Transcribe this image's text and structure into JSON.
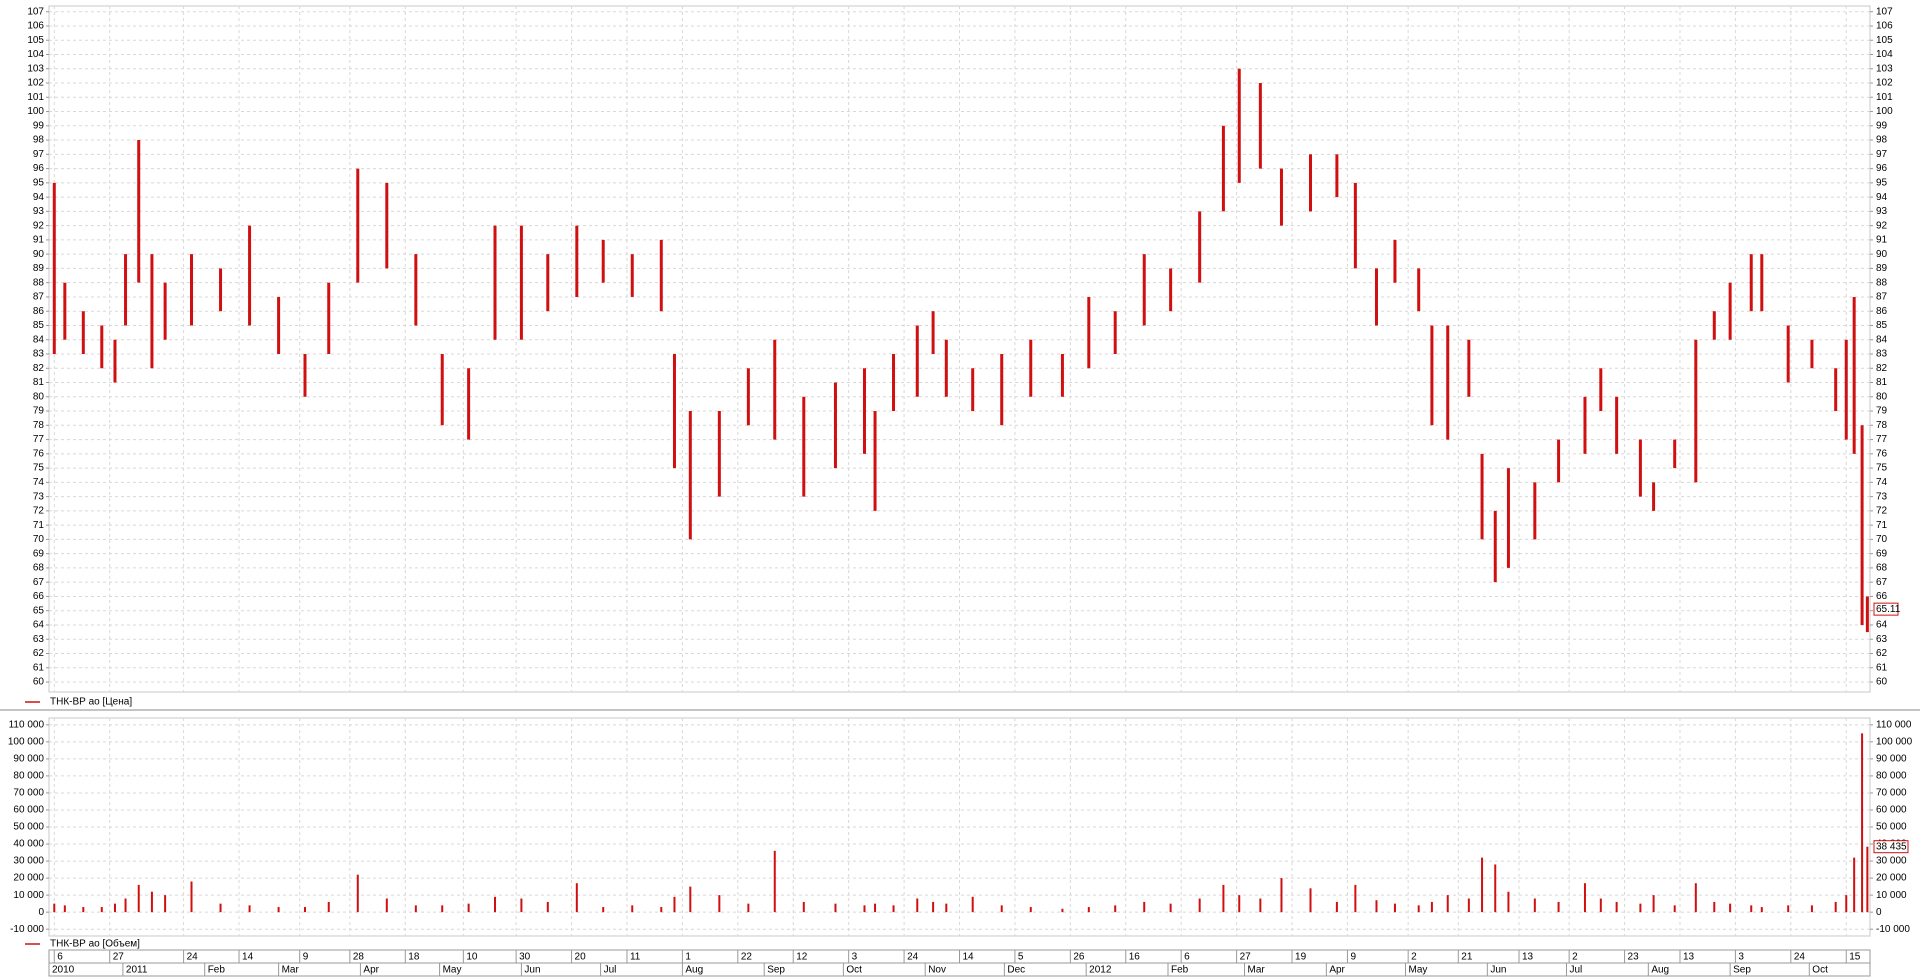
{
  "chart_data": [
    {
      "type": "hilo",
      "legend": "ТНК-ВР ао [Цена]",
      "color": "#d01010",
      "x": [
        "2010-12-06",
        "2010-12-10",
        "2010-12-17",
        "2010-12-24",
        "2010-12-29",
        "2011-01-02",
        "2011-01-07",
        "2011-01-12",
        "2011-01-17",
        "2011-01-27",
        "2011-02-07",
        "2011-02-18",
        "2011-03-01",
        "2011-03-11",
        "2011-03-20",
        "2011-03-31",
        "2011-04-11",
        "2011-04-22",
        "2011-05-02",
        "2011-05-12",
        "2011-05-22",
        "2011-06-01",
        "2011-06-11",
        "2011-06-22",
        "2011-07-02",
        "2011-07-13",
        "2011-07-24",
        "2011-07-29",
        "2011-08-04",
        "2011-08-15",
        "2011-08-26",
        "2011-09-05",
        "2011-09-16",
        "2011-09-28",
        "2011-10-09",
        "2011-10-13",
        "2011-10-20",
        "2011-10-29",
        "2011-11-04",
        "2011-11-09",
        "2011-11-19",
        "2011-11-30",
        "2011-12-11",
        "2011-12-23",
        "2012-01-02",
        "2012-01-12",
        "2012-01-23",
        "2012-02-02",
        "2012-02-13",
        "2012-02-22",
        "2012-02-28",
        "2012-03-07",
        "2012-03-15",
        "2012-03-26",
        "2012-04-05",
        "2012-04-12",
        "2012-04-20",
        "2012-04-27",
        "2012-05-06",
        "2012-05-11",
        "2012-05-17",
        "2012-05-25",
        "2012-05-30",
        "2012-06-04",
        "2012-06-09",
        "2012-06-19",
        "2012-06-28",
        "2012-07-08",
        "2012-07-14",
        "2012-07-20",
        "2012-07-29",
        "2012-08-03",
        "2012-08-11",
        "2012-08-19",
        "2012-08-26",
        "2012-09-01",
        "2012-09-09",
        "2012-09-13",
        "2012-09-23",
        "2012-10-02",
        "2012-10-11",
        "2012-10-15",
        "2012-10-18",
        "2012-10-21",
        "2012-10-23"
      ],
      "high": [
        95,
        88,
        86,
        85,
        84,
        90,
        98,
        90,
        88,
        90,
        89,
        92,
        87,
        83,
        88,
        96,
        95,
        90,
        83,
        82,
        92,
        92,
        90,
        92,
        91,
        90,
        91,
        83,
        79,
        79,
        82,
        84,
        80,
        81,
        82,
        79,
        83,
        85,
        86,
        84,
        82,
        83,
        84,
        83,
        87,
        86,
        90,
        89,
        93,
        99,
        103,
        102,
        96,
        97,
        97,
        95,
        89,
        91,
        89,
        85,
        85,
        84,
        76,
        72,
        75,
        74,
        77,
        80,
        82,
        80,
        77,
        74,
        77,
        84,
        86,
        88,
        90,
        90,
        85,
        84,
        82,
        84,
        87,
        78,
        66
      ],
      "low": [
        83,
        84,
        83,
        82,
        81,
        85,
        88,
        82,
        84,
        85,
        86,
        85,
        83,
        80,
        83,
        88,
        89,
        85,
        78,
        77,
        84,
        84,
        86,
        87,
        88,
        87,
        86,
        75,
        70,
        73,
        78,
        77,
        73,
        75,
        76,
        72,
        79,
        80,
        83,
        80,
        79,
        78,
        80,
        80,
        82,
        83,
        85,
        86,
        88,
        93,
        95,
        96,
        92,
        93,
        94,
        89,
        85,
        88,
        86,
        78,
        77,
        80,
        70,
        67,
        68,
        70,
        74,
        76,
        79,
        76,
        73,
        72,
        75,
        74,
        84,
        84,
        86,
        86,
        81,
        82,
        79,
        77,
        76,
        64,
        63.5
      ],
      "last_value": 65.11,
      "ylim": [
        59.3,
        107.4
      ],
      "yticks": [
        60,
        61,
        62,
        63,
        64,
        65,
        66,
        67,
        68,
        69,
        70,
        71,
        72,
        73,
        74,
        75,
        76,
        77,
        78,
        79,
        80,
        81,
        82,
        83,
        84,
        85,
        86,
        87,
        88,
        89,
        90,
        91,
        92,
        93,
        94,
        95,
        96,
        97,
        98,
        99,
        100,
        101,
        102,
        103,
        104,
        105,
        106,
        107
      ],
      "xlim": [
        "2010-12-04",
        "2012-10-24"
      ],
      "grid": true
    },
    {
      "type": "bar",
      "legend": "ТНК-ВР ао [Объем]",
      "color": "#d01010",
      "x": [
        "2010-12-06",
        "2010-12-10",
        "2010-12-17",
        "2010-12-24",
        "2010-12-29",
        "2011-01-02",
        "2011-01-07",
        "2011-01-12",
        "2011-01-17",
        "2011-01-27",
        "2011-02-07",
        "2011-02-18",
        "2011-03-01",
        "2011-03-11",
        "2011-03-20",
        "2011-03-31",
        "2011-04-11",
        "2011-04-22",
        "2011-05-02",
        "2011-05-12",
        "2011-05-22",
        "2011-06-01",
        "2011-06-11",
        "2011-06-22",
        "2011-07-02",
        "2011-07-13",
        "2011-07-24",
        "2011-07-29",
        "2011-08-04",
        "2011-08-15",
        "2011-08-26",
        "2011-09-05",
        "2011-09-16",
        "2011-09-28",
        "2011-10-09",
        "2011-10-13",
        "2011-10-20",
        "2011-10-29",
        "2011-11-04",
        "2011-11-09",
        "2011-11-19",
        "2011-11-30",
        "2011-12-11",
        "2011-12-23",
        "2012-01-02",
        "2012-01-12",
        "2012-01-23",
        "2012-02-02",
        "2012-02-13",
        "2012-02-22",
        "2012-02-28",
        "2012-03-07",
        "2012-03-15",
        "2012-03-26",
        "2012-04-05",
        "2012-04-12",
        "2012-04-20",
        "2012-04-27",
        "2012-05-06",
        "2012-05-11",
        "2012-05-17",
        "2012-05-25",
        "2012-05-30",
        "2012-06-04",
        "2012-06-09",
        "2012-06-19",
        "2012-06-28",
        "2012-07-08",
        "2012-07-14",
        "2012-07-20",
        "2012-07-29",
        "2012-08-03",
        "2012-08-11",
        "2012-08-19",
        "2012-08-26",
        "2012-09-01",
        "2012-09-09",
        "2012-09-13",
        "2012-09-23",
        "2012-10-02",
        "2012-10-11",
        "2012-10-15",
        "2012-10-18",
        "2012-10-21",
        "2012-10-23"
      ],
      "values": [
        5000,
        4000,
        3000,
        3000,
        5000,
        8000,
        16000,
        12000,
        10000,
        18000,
        5000,
        4000,
        3000,
        3000,
        6000,
        22000,
        8000,
        4000,
        4000,
        5000,
        9000,
        8000,
        6000,
        17000,
        3000,
        4000,
        3000,
        9000,
        15000,
        10000,
        5000,
        36000,
        6000,
        5000,
        4000,
        5000,
        4000,
        8000,
        6000,
        5000,
        9000,
        4000,
        3000,
        2000,
        3000,
        4000,
        6000,
        5000,
        8000,
        16000,
        10000,
        8000,
        20000,
        14000,
        6000,
        16000,
        7000,
        5000,
        4000,
        6000,
        10000,
        8000,
        32000,
        28000,
        12000,
        8000,
        6000,
        17000,
        8000,
        6000,
        5000,
        10000,
        4000,
        17000,
        6000,
        5000,
        4000,
        3000,
        4000,
        4000,
        6000,
        10000,
        32000,
        105000,
        38435
      ],
      "last_label": "38 435",
      "ylim": [
        -14000,
        114000
      ],
      "yticks": [
        {
          "value": -10000,
          "label": "-10 000"
        },
        0,
        {
          "value": 10000,
          "label": "10 000"
        },
        {
          "value": 20000,
          "label": "20 000"
        },
        {
          "value": 30000,
          "label": "30 000"
        },
        {
          "value": 40000,
          "label": "40 000"
        },
        {
          "value": 50000,
          "label": "50 000"
        },
        {
          "value": 60000,
          "label": "60 000"
        },
        {
          "value": 70000,
          "label": "70 000"
        },
        {
          "value": 80000,
          "label": "80 000"
        },
        {
          "value": 90000,
          "label": "90 000"
        },
        {
          "value": 100000,
          "label": "100 000"
        },
        {
          "value": 110000,
          "label": "110 000"
        }
      ],
      "xlim": [
        "2010-12-04",
        "2012-10-24"
      ],
      "xticks": [
        {
          "value": "2010-12-06",
          "label": "6"
        },
        {
          "value": "2010-12-27",
          "label": "27"
        },
        {
          "value": "2011-01-24",
          "label": "24"
        },
        {
          "value": "2011-02-14",
          "label": "14"
        },
        {
          "value": "2011-03-09",
          "label": "9"
        },
        {
          "value": "2011-03-28",
          "label": "28"
        },
        {
          "value": "2011-04-18",
          "label": "18"
        },
        {
          "value": "2011-05-10",
          "label": "10"
        },
        {
          "value": "2011-05-30",
          "label": "30"
        },
        {
          "value": "2011-06-20",
          "label": "20"
        },
        {
          "value": "2011-07-11",
          "label": "11"
        },
        {
          "value": "2011-08-01",
          "label": "1"
        },
        {
          "value": "2011-08-22",
          "label": "22"
        },
        {
          "value": "2011-09-12",
          "label": "12"
        },
        {
          "value": "2011-10-03",
          "label": "3"
        },
        {
          "value": "2011-10-24",
          "label": "24"
        },
        {
          "value": "2011-11-14",
          "label": "14"
        },
        {
          "value": "2011-12-05",
          "label": "5"
        },
        {
          "value": "2011-12-26",
          "label": "26"
        },
        {
          "value": "2012-01-16",
          "label": "16"
        },
        {
          "value": "2012-02-06",
          "label": "6"
        },
        {
          "value": "2012-02-27",
          "label": "27"
        },
        {
          "value": "2012-03-19",
          "label": "19"
        },
        {
          "value": "2012-04-09",
          "label": "9"
        },
        {
          "value": "2012-05-02",
          "label": "2"
        },
        {
          "value": "2012-05-21",
          "label": "21"
        },
        {
          "value": "2012-06-13",
          "label": "13"
        },
        {
          "value": "2012-07-02",
          "label": "2"
        },
        {
          "value": "2012-07-23",
          "label": "23"
        },
        {
          "value": "2012-08-13",
          "label": "13"
        },
        {
          "value": "2012-09-03",
          "label": "3"
        },
        {
          "value": "2012-09-24",
          "label": "24"
        },
        {
          "value": "2012-10-15",
          "label": "15"
        }
      ],
      "xticks_major": [
        {
          "value": "2010-12-01",
          "label": "2010"
        },
        {
          "value": "2011-01-01",
          "label": "2011"
        },
        {
          "value": "2011-02-01",
          "label": "Feb"
        },
        {
          "value": "2011-03-01",
          "label": "Mar"
        },
        {
          "value": "2011-04-01",
          "label": "Apr"
        },
        {
          "value": "2011-05-01",
          "label": "May"
        },
        {
          "value": "2011-06-01",
          "label": "Jun"
        },
        {
          "value": "2011-07-01",
          "label": "Jul"
        },
        {
          "value": "2011-08-01",
          "label": "Aug"
        },
        {
          "value": "2011-09-01",
          "label": "Sep"
        },
        {
          "value": "2011-10-01",
          "label": "Oct"
        },
        {
          "value": "2011-11-01",
          "label": "Nov"
        },
        {
          "value": "2011-12-01",
          "label": "Dec"
        },
        {
          "value": "2012-01-01",
          "label": "2012"
        },
        {
          "value": "2012-02-01",
          "label": "Feb"
        },
        {
          "value": "2012-03-01",
          "label": "Mar"
        },
        {
          "value": "2012-04-01",
          "label": "Apr"
        },
        {
          "value": "2012-05-01",
          "label": "May"
        },
        {
          "value": "2012-06-01",
          "label": "Jun"
        },
        {
          "value": "2012-07-01",
          "label": "Jul"
        },
        {
          "value": "2012-08-01",
          "label": "Aug"
        },
        {
          "value": "2012-09-01",
          "label": "Sep"
        },
        {
          "value": "2012-10-01",
          "label": "Oct"
        }
      ],
      "grid": true
    }
  ]
}
